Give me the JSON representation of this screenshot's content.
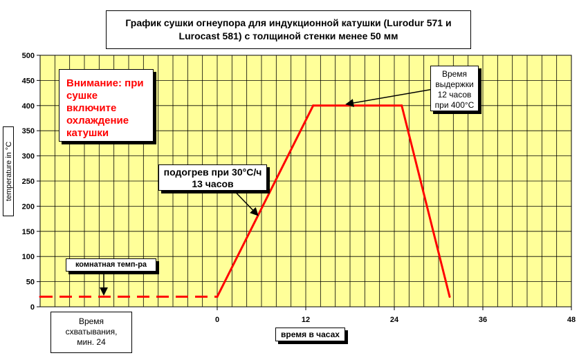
{
  "chart_data": {
    "type": "line",
    "title": "График сушки огнеупора для индукционной катушки (Lurodur 571 и Lurocast 581) с толщиной стенки менее 50 мм",
    "title_line1": "График сушки огнеупора для индукционной катушки (Lurodur 571 и",
    "title_line2": "Lurocast 581) с толщиной стенки менее 50 мм",
    "xlabel": "время в часах",
    "ylabel": "temperature in °C",
    "xlim": [
      -24,
      48
    ],
    "ylim": [
      0,
      500
    ],
    "x_ticks": [
      "0",
      "12",
      "24",
      "36",
      "48"
    ],
    "y_ticks": [
      "0",
      "50",
      "100",
      "150",
      "200",
      "250",
      "300",
      "350",
      "400",
      "450",
      "500"
    ],
    "grid": true,
    "series": [
      {
        "name": "",
        "style": "solid",
        "color": "#ff0000",
        "points": [
          [
            0,
            20
          ],
          [
            13,
            400
          ],
          [
            25,
            400
          ],
          [
            31.5,
            20
          ]
        ]
      },
      {
        "name": "",
        "style": "dashed",
        "color": "#ff0000",
        "points": [
          [
            -24,
            20
          ],
          [
            0,
            20
          ]
        ]
      }
    ],
    "annotations": {
      "warning": [
        "Внимание: при",
        "сушке",
        "включите",
        "охлаждение",
        "катушки"
      ],
      "hold": [
        "Время",
        "выдержки",
        "12 часов",
        "при 400°C"
      ],
      "heat": [
        "подогрев при 30°C/ч",
        "13 часов"
      ],
      "room": "комнатная темп-ра",
      "setting": [
        "Время",
        "схватывания,",
        "мин. 24"
      ]
    }
  },
  "colors": {
    "plot_bg": "#ffff99",
    "grid": "#000000",
    "line": "#ff0000",
    "warning_text": "#ff0000"
  }
}
